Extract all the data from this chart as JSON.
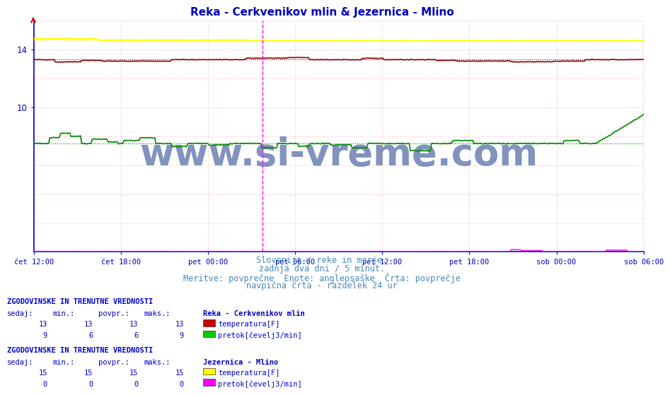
{
  "title": "Reka - Cerkvenikov mlin & Jezernica - Mlino",
  "title_color": "#0000bb",
  "title_fontsize": 11,
  "bg_color": "#ffffff",
  "plot_bg_color": "#ffffff",
  "fig_size": [
    9.47,
    5.5
  ],
  "dpi": 100,
  "x_labels": [
    "čet 12:00",
    "čet 18:00",
    "pet 00:00",
    "pet 06:00",
    "pet 12:00",
    "pet 18:00",
    "sob 00:00",
    "sob 06:00"
  ],
  "n_points": 576,
  "ylim": [
    0,
    16.0
  ],
  "yticks": [
    10,
    14
  ],
  "reka_temp_color": "#880000",
  "reka_pretok_color": "#008800",
  "jezernica_temp_color": "#ffff00",
  "jezernica_pretok_color": "#ff00ff",
  "vline_color": "#ff00ff",
  "vline_pos": 0.375,
  "grid_h_color": "#ffaaaa",
  "grid_v_color": "#ffaaaa",
  "axis_color": "#0000cc",
  "tick_color": "#0000cc",
  "watermark": "www.si-vreme.com",
  "watermark_color": "#1a3a8a",
  "watermark_alpha": 0.55,
  "watermark_fontsize": 38,
  "info_lines": [
    "Slovenija / reke in morje.",
    "zadnja dva dni / 5 minut.",
    "Meritve: povprečne  Enote: angleosaške  Črta: povprečje",
    "navpična črta - razdelek 24 ur"
  ],
  "info_color": "#4488bb",
  "info_fontsize": 8.5,
  "table1_title": "ZGODOVINSKE IN TRENUTNE VREDNOSTI",
  "table1_station": "Reka - Cerkvenikov mlin",
  "table1_headers": [
    "sedaj:",
    "min.:",
    "povpr.:",
    "maks.:"
  ],
  "table1_row1_vals": [
    13,
    13,
    13,
    13
  ],
  "table1_row1_label": "temperatura[F]",
  "table1_row1_color": "#cc0000",
  "table1_row2_vals": [
    9,
    6,
    6,
    9
  ],
  "table1_row2_label": "pretok[čevelj3/min]",
  "table1_row2_color": "#00cc00",
  "table2_title": "ZGODOVINSKE IN TRENUTNE VREDNOSTI",
  "table2_station": "Jezernica - Mlino",
  "table2_headers": [
    "sedaj:",
    "min.:",
    "povpr.:",
    "maks.:"
  ],
  "table2_row1_vals": [
    15,
    15,
    15,
    15
  ],
  "table2_row1_label": "temperatura[F]",
  "table2_row1_color": "#ffff00",
  "table2_row2_vals": [
    0,
    0,
    0,
    0
  ],
  "table2_row2_label": "pretok[čevelj3/min]",
  "table2_row2_color": "#ff00ff"
}
